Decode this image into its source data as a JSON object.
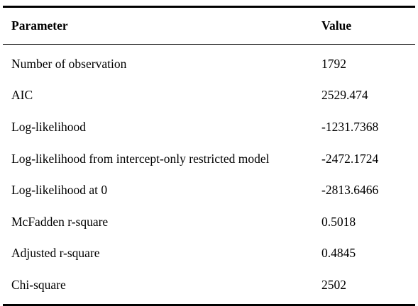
{
  "table": {
    "headers": {
      "parameter": "Parameter",
      "value": "Value"
    },
    "rows": [
      {
        "parameter": "Number of observation",
        "value": "1792"
      },
      {
        "parameter": "AIC",
        "value": "2529.474"
      },
      {
        "parameter": "Log-likelihood",
        "value": "-1231.7368"
      },
      {
        "parameter": "Log-likelihood from intercept-only restricted model",
        "value": "-2472.1724"
      },
      {
        "parameter": "Log-likelihood at 0",
        "value": "-2813.6466"
      },
      {
        "parameter": "McFadden r-square",
        "value": "0.5018"
      },
      {
        "parameter": "Adjusted r-square",
        "value": "0.4845"
      },
      {
        "parameter": "Chi-square",
        "value": "2502"
      }
    ]
  }
}
